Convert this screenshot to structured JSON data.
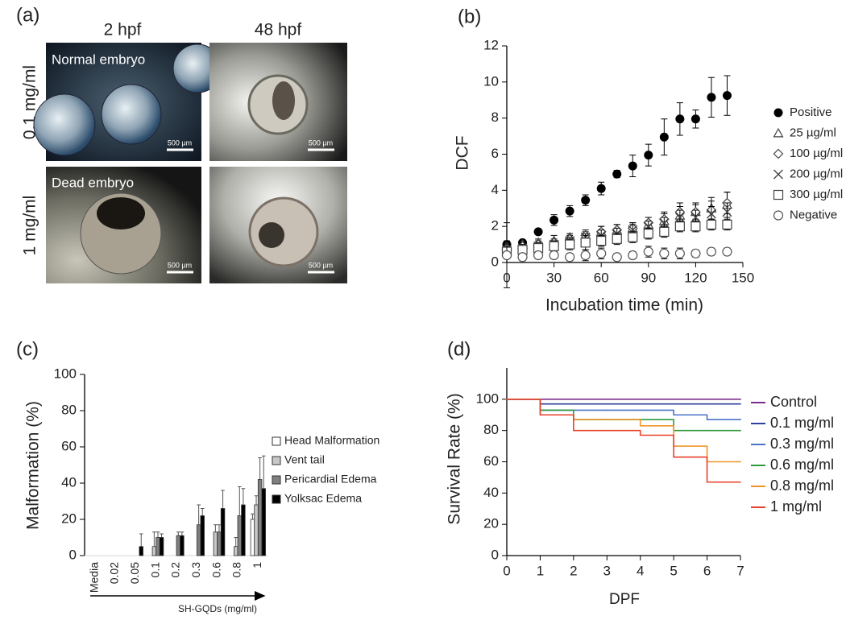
{
  "panel_a": {
    "label": "(a)",
    "columns": [
      "2 hpf",
      "48 hpf"
    ],
    "rows": [
      "0.1 mg/ml",
      "1 mg/ml"
    ],
    "captions": [
      "Normal embryo",
      "Dead embryo"
    ],
    "scale_bars": [
      "500 µm",
      "500 µm",
      "500 µm",
      "500 µm"
    ]
  },
  "chart_data": [
    {
      "type": "scatter",
      "panel_label": "(b)",
      "xlabel": "Incubation time (min)",
      "ylabel": "DCF",
      "x": [
        0,
        10,
        20,
        30,
        40,
        50,
        60,
        70,
        80,
        90,
        100,
        110,
        120,
        130,
        140
      ],
      "xlim": [
        0,
        150
      ],
      "xticks": [
        0,
        30,
        60,
        90,
        120,
        150
      ],
      "ylim": [
        0,
        12
      ],
      "yticks": [
        0,
        2,
        4,
        6,
        8,
        10,
        12
      ],
      "series": [
        {
          "name": "Positive",
          "marker": "filled-circle",
          "color": "#000000",
          "values": [
            1.0,
            1.1,
            1.7,
            2.35,
            2.85,
            3.45,
            4.1,
            4.9,
            5.35,
            5.95,
            6.95,
            7.95,
            7.95,
            9.15,
            9.25
          ],
          "errors": [
            0.2,
            0.1,
            0.1,
            0.3,
            0.3,
            0.3,
            0.35,
            0.2,
            0.6,
            0.6,
            1.0,
            0.9,
            0.5,
            1.1,
            1.1
          ]
        },
        {
          "name": "25 µg/ml",
          "marker": "triangle",
          "color": "#000000",
          "values": [
            0.9,
            1.0,
            1.1,
            1.2,
            1.4,
            1.5,
            1.7,
            1.8,
            1.9,
            2.1,
            2.3,
            2.6,
            2.8,
            3.0,
            3.2
          ],
          "errors": [
            0.2,
            0.2,
            0.2,
            0.3,
            0.2,
            0.2,
            0.3,
            0.3,
            0.3,
            0.4,
            0.4,
            0.5,
            0.4,
            0.6,
            0.7
          ]
        },
        {
          "name": "100 µg/ml",
          "marker": "diamond",
          "color": "#000000",
          "values": [
            0.8,
            0.9,
            1.0,
            1.1,
            1.3,
            1.5,
            1.7,
            1.8,
            1.9,
            2.2,
            2.4,
            2.8,
            2.8,
            2.9,
            3.3
          ],
          "errors": [
            0.2,
            0.2,
            0.2,
            0.2,
            0.2,
            0.3,
            0.3,
            0.3,
            0.3,
            0.3,
            0.4,
            0.5,
            0.5,
            0.5,
            0.6
          ]
        },
        {
          "name": "200 µg/ml",
          "marker": "cross",
          "color": "#000000",
          "values": [
            0.7,
            0.8,
            0.9,
            1.0,
            1.2,
            1.4,
            1.5,
            1.6,
            1.8,
            2.0,
            2.2,
            2.5,
            2.5,
            2.7,
            2.8
          ],
          "errors": [
            0.2,
            0.2,
            0.2,
            0.2,
            0.2,
            0.2,
            0.3,
            0.3,
            0.3,
            0.3,
            0.3,
            0.4,
            0.4,
            0.4,
            0.5
          ]
        },
        {
          "name": "300 µg/ml",
          "marker": "square",
          "color": "#000000",
          "values": [
            0.6,
            0.7,
            0.8,
            0.9,
            1.0,
            1.1,
            1.2,
            1.3,
            1.4,
            1.6,
            1.7,
            2.0,
            2.0,
            2.1,
            2.1
          ],
          "errors": [
            0.2,
            0.2,
            0.2,
            0.3,
            0.3,
            0.4,
            0.3,
            0.3,
            0.3,
            0.3,
            0.3,
            0.3,
            0.3,
            0.3,
            0.3
          ]
        },
        {
          "name": "Negative",
          "marker": "circle",
          "color": "#000000",
          "values": [
            0.4,
            0.3,
            0.4,
            0.4,
            0.3,
            0.4,
            0.5,
            0.3,
            0.4,
            0.6,
            0.5,
            0.5,
            0.5,
            0.6,
            0.6
          ],
          "errors": [
            1.8,
            0.2,
            0.2,
            0.2,
            0.2,
            0.3,
            0.3,
            0.2,
            0.2,
            0.3,
            0.3,
            0.3,
            0.2,
            0.2,
            0.2
          ]
        }
      ]
    },
    {
      "type": "bar",
      "panel_label": "(c)",
      "xlabel": "SH-GQDs (mg/ml)",
      "ylabel": "Malformation (%)",
      "categories": [
        "Media",
        "0.02",
        "0.05",
        "0.1",
        "0.2",
        "0.3",
        "0.6",
        "0.8",
        "1"
      ],
      "ylim": [
        0,
        100
      ],
      "yticks": [
        0,
        20,
        40,
        60,
        80,
        100
      ],
      "series": [
        {
          "name": "Head Malformation",
          "color": "#ffffff",
          "values": [
            0,
            0,
            0,
            0,
            0,
            0,
            0,
            0,
            20
          ],
          "errors": [
            0,
            0,
            0,
            0,
            0,
            0,
            0,
            0,
            3
          ]
        },
        {
          "name": "Vent tail",
          "color": "#c8c8c8",
          "values": [
            0,
            0,
            0,
            5,
            0,
            0,
            13,
            5,
            28
          ],
          "errors": [
            0,
            0,
            0,
            8,
            0,
            0,
            4,
            5,
            5
          ]
        },
        {
          "name": "Pericardial Edema",
          "color": "#808080",
          "values": [
            0,
            0,
            0,
            10,
            11,
            17,
            13,
            22,
            42
          ],
          "errors": [
            0,
            0,
            0,
            3,
            2,
            11,
            4,
            16,
            12
          ]
        },
        {
          "name": "Yolksac Edema",
          "color": "#000000",
          "values": [
            0,
            0,
            5,
            10,
            11,
            22,
            26,
            28,
            37
          ],
          "errors": [
            0,
            0,
            7,
            2,
            2,
            4,
            10,
            9,
            18
          ]
        }
      ]
    },
    {
      "type": "step",
      "panel_label": "(d)",
      "xlabel": "DPF",
      "ylabel": "Survival Rate (%)",
      "x": [
        0,
        1,
        2,
        3,
        4,
        5,
        6,
        7
      ],
      "xlim": [
        0,
        7
      ],
      "xticks": [
        0,
        1,
        2,
        3,
        4,
        5,
        6,
        7
      ],
      "ylim": [
        0,
        120
      ],
      "yticks": [
        0,
        20,
        40,
        60,
        80,
        100
      ],
      "series": [
        {
          "name": "Control",
          "color": "#7b2d8e",
          "values": [
            100,
            100,
            100,
            100,
            100,
            100,
            100,
            100
          ]
        },
        {
          "name": "0.1 mg/ml",
          "color": "#2e3f9e",
          "values": [
            100,
            97,
            97,
            97,
            97,
            97,
            97,
            97
          ]
        },
        {
          "name": "0.3 mg/ml",
          "color": "#4a72c6",
          "values": [
            100,
            93,
            93,
            93,
            93,
            90,
            87,
            87
          ]
        },
        {
          "name": "0.6 mg/ml",
          "color": "#2e9a3e",
          "values": [
            100,
            93,
            87,
            87,
            87,
            80,
            80,
            80
          ]
        },
        {
          "name": "0.8 mg/ml",
          "color": "#f0952a",
          "values": [
            100,
            90,
            87,
            87,
            83,
            70,
            60,
            60
          ]
        },
        {
          "name": "1 mg/ml",
          "color": "#e8402a",
          "values": [
            100,
            90,
            80,
            80,
            77,
            63,
            47,
            47
          ]
        }
      ]
    }
  ]
}
